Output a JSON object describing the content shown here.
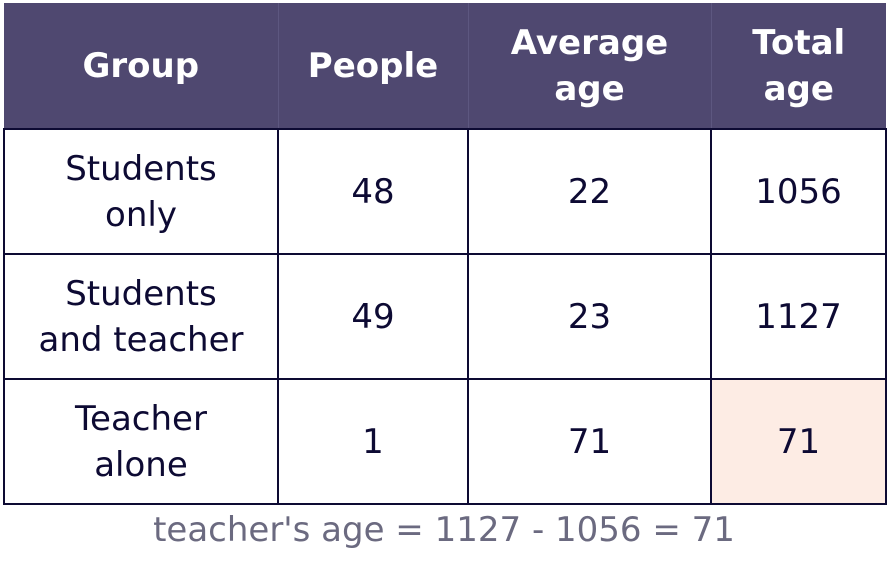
{
  "table": {
    "header": [
      "Group",
      "People",
      "Average\nage",
      "Total\nage"
    ],
    "rows": [
      [
        "Students\nonly",
        48,
        22,
        1056
      ],
      [
        "Students\nand teacher",
        49,
        23,
        1127
      ],
      [
        "Teacher\nalone",
        1,
        71,
        71
      ]
    ]
  },
  "note": "teacher's age = 1127 - 1056 = 71"
}
